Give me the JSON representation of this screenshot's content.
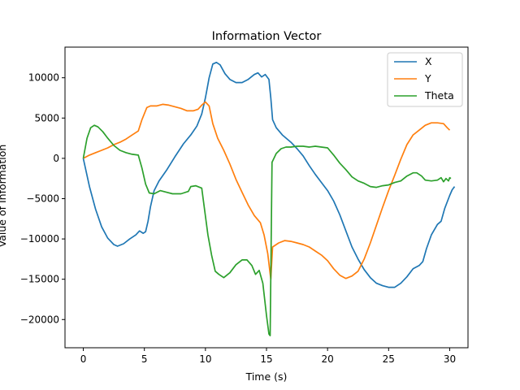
{
  "chart_data": {
    "type": "line",
    "title": "Information Vector",
    "xlabel": "Time (s)",
    "ylabel": "Value of Information",
    "xlim": [
      -1.5,
      31.5
    ],
    "ylim": [
      -23500,
      13800
    ],
    "xticks": [
      0,
      5,
      10,
      15,
      20,
      25,
      30
    ],
    "yticks": [
      -20000,
      -15000,
      -10000,
      -5000,
      0,
      5000,
      10000
    ],
    "xtick_labels": [
      "0",
      "5",
      "10",
      "15",
      "20",
      "25",
      "30"
    ],
    "ytick_labels": [
      "−20000",
      "−15000",
      "−10000",
      "−5000",
      "0",
      "5000",
      "10000"
    ],
    "grid": false,
    "legend_position": "top-right",
    "series": [
      {
        "name": "X",
        "color": "#1f77b4",
        "points": [
          [
            0,
            0
          ],
          [
            0.5,
            -3500
          ],
          [
            1,
            -6300
          ],
          [
            1.5,
            -8500
          ],
          [
            2,
            -9900
          ],
          [
            2.5,
            -10700
          ],
          [
            2.8,
            -10900
          ],
          [
            3.3,
            -10600
          ],
          [
            3.8,
            -10000
          ],
          [
            4.3,
            -9500
          ],
          [
            4.6,
            -9000
          ],
          [
            4.9,
            -9300
          ],
          [
            5.1,
            -9100
          ],
          [
            5.3,
            -7800
          ],
          [
            5.5,
            -6000
          ],
          [
            5.8,
            -4000
          ],
          [
            6.2,
            -2800
          ],
          [
            6.8,
            -1500
          ],
          [
            7.5,
            200
          ],
          [
            8.2,
            1800
          ],
          [
            8.8,
            2900
          ],
          [
            9.3,
            4000
          ],
          [
            9.7,
            5500
          ],
          [
            10,
            7500
          ],
          [
            10.3,
            10000
          ],
          [
            10.6,
            11700
          ],
          [
            10.9,
            11900
          ],
          [
            11.2,
            11600
          ],
          [
            11.6,
            10500
          ],
          [
            12,
            9800
          ],
          [
            12.5,
            9400
          ],
          [
            13,
            9400
          ],
          [
            13.5,
            9800
          ],
          [
            14,
            10400
          ],
          [
            14.3,
            10600
          ],
          [
            14.6,
            10100
          ],
          [
            14.9,
            10400
          ],
          [
            15.2,
            9800
          ],
          [
            15.35,
            7500
          ],
          [
            15.5,
            4800
          ],
          [
            15.8,
            3800
          ],
          [
            16.3,
            2900
          ],
          [
            17,
            2000
          ],
          [
            17.5,
            1200
          ],
          [
            18,
            300
          ],
          [
            18.5,
            -900
          ],
          [
            19,
            -2000
          ],
          [
            19.5,
            -3000
          ],
          [
            20,
            -4000
          ],
          [
            20.5,
            -5300
          ],
          [
            21,
            -7000
          ],
          [
            21.5,
            -9000
          ],
          [
            22,
            -11000
          ],
          [
            22.5,
            -12500
          ],
          [
            23,
            -13800
          ],
          [
            23.5,
            -14800
          ],
          [
            24,
            -15500
          ],
          [
            24.5,
            -15800
          ],
          [
            25,
            -16000
          ],
          [
            25.5,
            -16000
          ],
          [
            26,
            -15500
          ],
          [
            26.5,
            -14700
          ],
          [
            27,
            -13700
          ],
          [
            27.5,
            -13300
          ],
          [
            27.8,
            -12800
          ],
          [
            28.1,
            -11200
          ],
          [
            28.5,
            -9500
          ],
          [
            29,
            -8200
          ],
          [
            29.3,
            -7800
          ],
          [
            29.6,
            -6200
          ],
          [
            30,
            -4600
          ],
          [
            30.2,
            -3900
          ],
          [
            30.4,
            -3500
          ]
        ]
      },
      {
        "name": "Y",
        "color": "#ff7f0e",
        "points": [
          [
            0,
            0
          ],
          [
            0.5,
            400
          ],
          [
            1,
            700
          ],
          [
            1.5,
            1000
          ],
          [
            2,
            1300
          ],
          [
            2.5,
            1700
          ],
          [
            3,
            2000
          ],
          [
            3.5,
            2400
          ],
          [
            4,
            2900
          ],
          [
            4.5,
            3400
          ],
          [
            4.8,
            4800
          ],
          [
            5.2,
            6300
          ],
          [
            5.5,
            6500
          ],
          [
            6,
            6500
          ],
          [
            6.5,
            6700
          ],
          [
            7,
            6600
          ],
          [
            7.5,
            6400
          ],
          [
            8,
            6200
          ],
          [
            8.5,
            5900
          ],
          [
            9,
            5900
          ],
          [
            9.4,
            6100
          ],
          [
            9.7,
            6600
          ],
          [
            10,
            7000
          ],
          [
            10.3,
            6500
          ],
          [
            10.6,
            4300
          ],
          [
            11,
            2500
          ],
          [
            11.5,
            1000
          ],
          [
            12,
            -700
          ],
          [
            12.5,
            -2600
          ],
          [
            13,
            -4200
          ],
          [
            13.5,
            -5800
          ],
          [
            14,
            -7100
          ],
          [
            14.5,
            -8000
          ],
          [
            14.8,
            -9500
          ],
          [
            15.1,
            -11800
          ],
          [
            15.35,
            -15000
          ],
          [
            15.5,
            -11000
          ],
          [
            16,
            -10500
          ],
          [
            16.5,
            -10200
          ],
          [
            17,
            -10300
          ],
          [
            17.5,
            -10500
          ],
          [
            18,
            -10700
          ],
          [
            18.5,
            -11000
          ],
          [
            19,
            -11500
          ],
          [
            19.5,
            -12000
          ],
          [
            20,
            -12700
          ],
          [
            20.5,
            -13700
          ],
          [
            21,
            -14500
          ],
          [
            21.5,
            -14900
          ],
          [
            22,
            -14600
          ],
          [
            22.5,
            -14000
          ],
          [
            23,
            -12500
          ],
          [
            23.5,
            -10500
          ],
          [
            24,
            -8300
          ],
          [
            24.5,
            -6100
          ],
          [
            25,
            -4000
          ],
          [
            25.5,
            -2100
          ],
          [
            26,
            -100
          ],
          [
            26.5,
            1700
          ],
          [
            27,
            2900
          ],
          [
            27.5,
            3500
          ],
          [
            28,
            4100
          ],
          [
            28.5,
            4400
          ],
          [
            29,
            4400
          ],
          [
            29.5,
            4300
          ],
          [
            29.8,
            3800
          ],
          [
            30,
            3500
          ]
        ]
      },
      {
        "name": "Theta",
        "color": "#2ca02c",
        "points": [
          [
            0,
            0
          ],
          [
            0.3,
            2500
          ],
          [
            0.6,
            3800
          ],
          [
            0.9,
            4100
          ],
          [
            1.2,
            3900
          ],
          [
            1.6,
            3300
          ],
          [
            2,
            2500
          ],
          [
            2.5,
            1600
          ],
          [
            3,
            1000
          ],
          [
            3.5,
            700
          ],
          [
            4,
            500
          ],
          [
            4.5,
            400
          ],
          [
            4.8,
            -1200
          ],
          [
            5.1,
            -3200
          ],
          [
            5.4,
            -4300
          ],
          [
            5.8,
            -4400
          ],
          [
            6.3,
            -4000
          ],
          [
            6.8,
            -4200
          ],
          [
            7.3,
            -4400
          ],
          [
            8,
            -4400
          ],
          [
            8.6,
            -4100
          ],
          [
            8.8,
            -3500
          ],
          [
            9.2,
            -3400
          ],
          [
            9.7,
            -3700
          ],
          [
            9.9,
            -6000
          ],
          [
            10.2,
            -9500
          ],
          [
            10.5,
            -12000
          ],
          [
            10.8,
            -14000
          ],
          [
            11.1,
            -14400
          ],
          [
            11.5,
            -14800
          ],
          [
            12,
            -14200
          ],
          [
            12.5,
            -13200
          ],
          [
            13,
            -12600
          ],
          [
            13.4,
            -12600
          ],
          [
            13.8,
            -13300
          ],
          [
            14.1,
            -14400
          ],
          [
            14.4,
            -13900
          ],
          [
            14.7,
            -15500
          ],
          [
            15,
            -19500
          ],
          [
            15.2,
            -21800
          ],
          [
            15.3,
            -22000
          ],
          [
            15.45,
            -500
          ],
          [
            15.8,
            600
          ],
          [
            16.2,
            1200
          ],
          [
            16.6,
            1400
          ],
          [
            17,
            1400
          ],
          [
            17.5,
            1500
          ],
          [
            18,
            1500
          ],
          [
            18.5,
            1400
          ],
          [
            19,
            1500
          ],
          [
            19.5,
            1400
          ],
          [
            20,
            1300
          ],
          [
            20.5,
            400
          ],
          [
            21,
            -600
          ],
          [
            21.5,
            -1400
          ],
          [
            22,
            -2300
          ],
          [
            22.5,
            -2800
          ],
          [
            23,
            -3100
          ],
          [
            23.5,
            -3500
          ],
          [
            24,
            -3600
          ],
          [
            24.5,
            -3400
          ],
          [
            25,
            -3300
          ],
          [
            25.5,
            -3000
          ],
          [
            26,
            -2800
          ],
          [
            26.5,
            -2200
          ],
          [
            27,
            -1800
          ],
          [
            27.3,
            -1800
          ],
          [
            27.7,
            -2200
          ],
          [
            28,
            -2700
          ],
          [
            28.5,
            -2800
          ],
          [
            29,
            -2700
          ],
          [
            29.3,
            -2400
          ],
          [
            29.5,
            -2900
          ],
          [
            29.7,
            -2500
          ],
          [
            29.9,
            -2800
          ],
          [
            30,
            -2400
          ],
          [
            30.1,
            -2500
          ]
        ]
      }
    ]
  }
}
